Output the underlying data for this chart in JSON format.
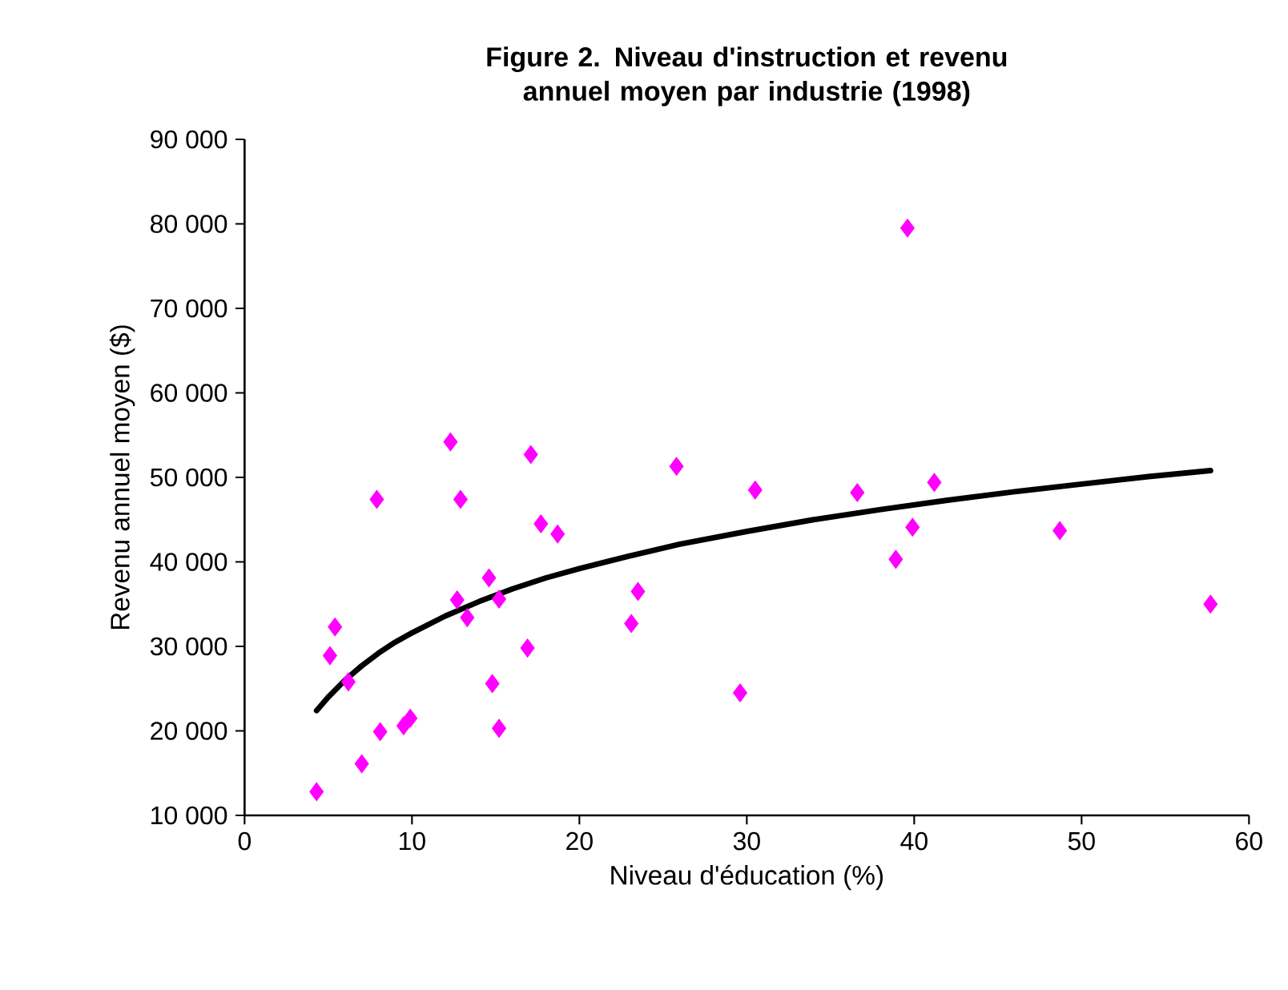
{
  "chart_data": {
    "type": "scatter",
    "title": "Figure 2. Niveau d'instruction et revenu annuel moyen par industrie (1998)",
    "xlabel": "Niveau d'éducation (%)",
    "ylabel": "Revenu annuel moyen ($)",
    "xlim": [
      0,
      60
    ],
    "xticks": [
      0,
      10,
      20,
      30,
      40,
      50,
      60
    ],
    "ylim": [
      10000,
      90000
    ],
    "yticks": [
      {
        "value": 10000,
        "label": "10 000"
      },
      {
        "value": 20000,
        "label": "20 000"
      },
      {
        "value": 30000,
        "label": "30 000"
      },
      {
        "value": 40000,
        "label": "40 000"
      },
      {
        "value": 50000,
        "label": "50 000"
      },
      {
        "value": 60000,
        "label": "60 000"
      },
      {
        "value": 70000,
        "label": "70 000"
      },
      {
        "value": 80000,
        "label": "80 000"
      },
      {
        "value": 90000,
        "label": "90 000"
      }
    ],
    "grid": false,
    "series": [
      {
        "color": "#ff00ff",
        "marker": "diamond",
        "x": [
          4.3,
          5.1,
          5.4,
          6.2,
          7.0,
          7.9,
          8.1,
          9.5,
          9.9,
          12.3,
          12.7,
          12.9,
          13.3,
          14.6,
          14.8,
          15.2,
          15.2,
          16.9,
          17.1,
          17.7,
          18.7,
          23.5,
          23.1,
          25.8,
          29.6,
          30.5,
          36.6,
          39.6,
          38.9,
          39.9,
          41.2,
          48.7,
          57.7
        ],
        "values": [
          12800,
          28900,
          32300,
          25800,
          16100,
          47400,
          19900,
          20600,
          21500,
          54200,
          35500,
          47400,
          33400,
          38100,
          25600,
          35600,
          20300,
          29800,
          52700,
          44500,
          43300,
          36500,
          32700,
          51300,
          24500,
          48500,
          48200,
          79500,
          40300,
          44100,
          49400,
          43700,
          35000
        ]
      },
      {
        "type": "line",
        "color": "#000000",
        "marker": "none",
        "line_style": "solid",
        "x": [
          4.3,
          5,
          6,
          7,
          8,
          9,
          10,
          12,
          14,
          16,
          18,
          20,
          23,
          26,
          30,
          34,
          38,
          42,
          46,
          50,
          54,
          57.7
        ],
        "values": [
          22400,
          24000,
          26000,
          27700,
          29200,
          30500,
          31600,
          33600,
          35300,
          36800,
          38100,
          39200,
          40700,
          42100,
          43600,
          45000,
          46200,
          47300,
          48300,
          49200,
          50100,
          50800
        ]
      }
    ]
  }
}
